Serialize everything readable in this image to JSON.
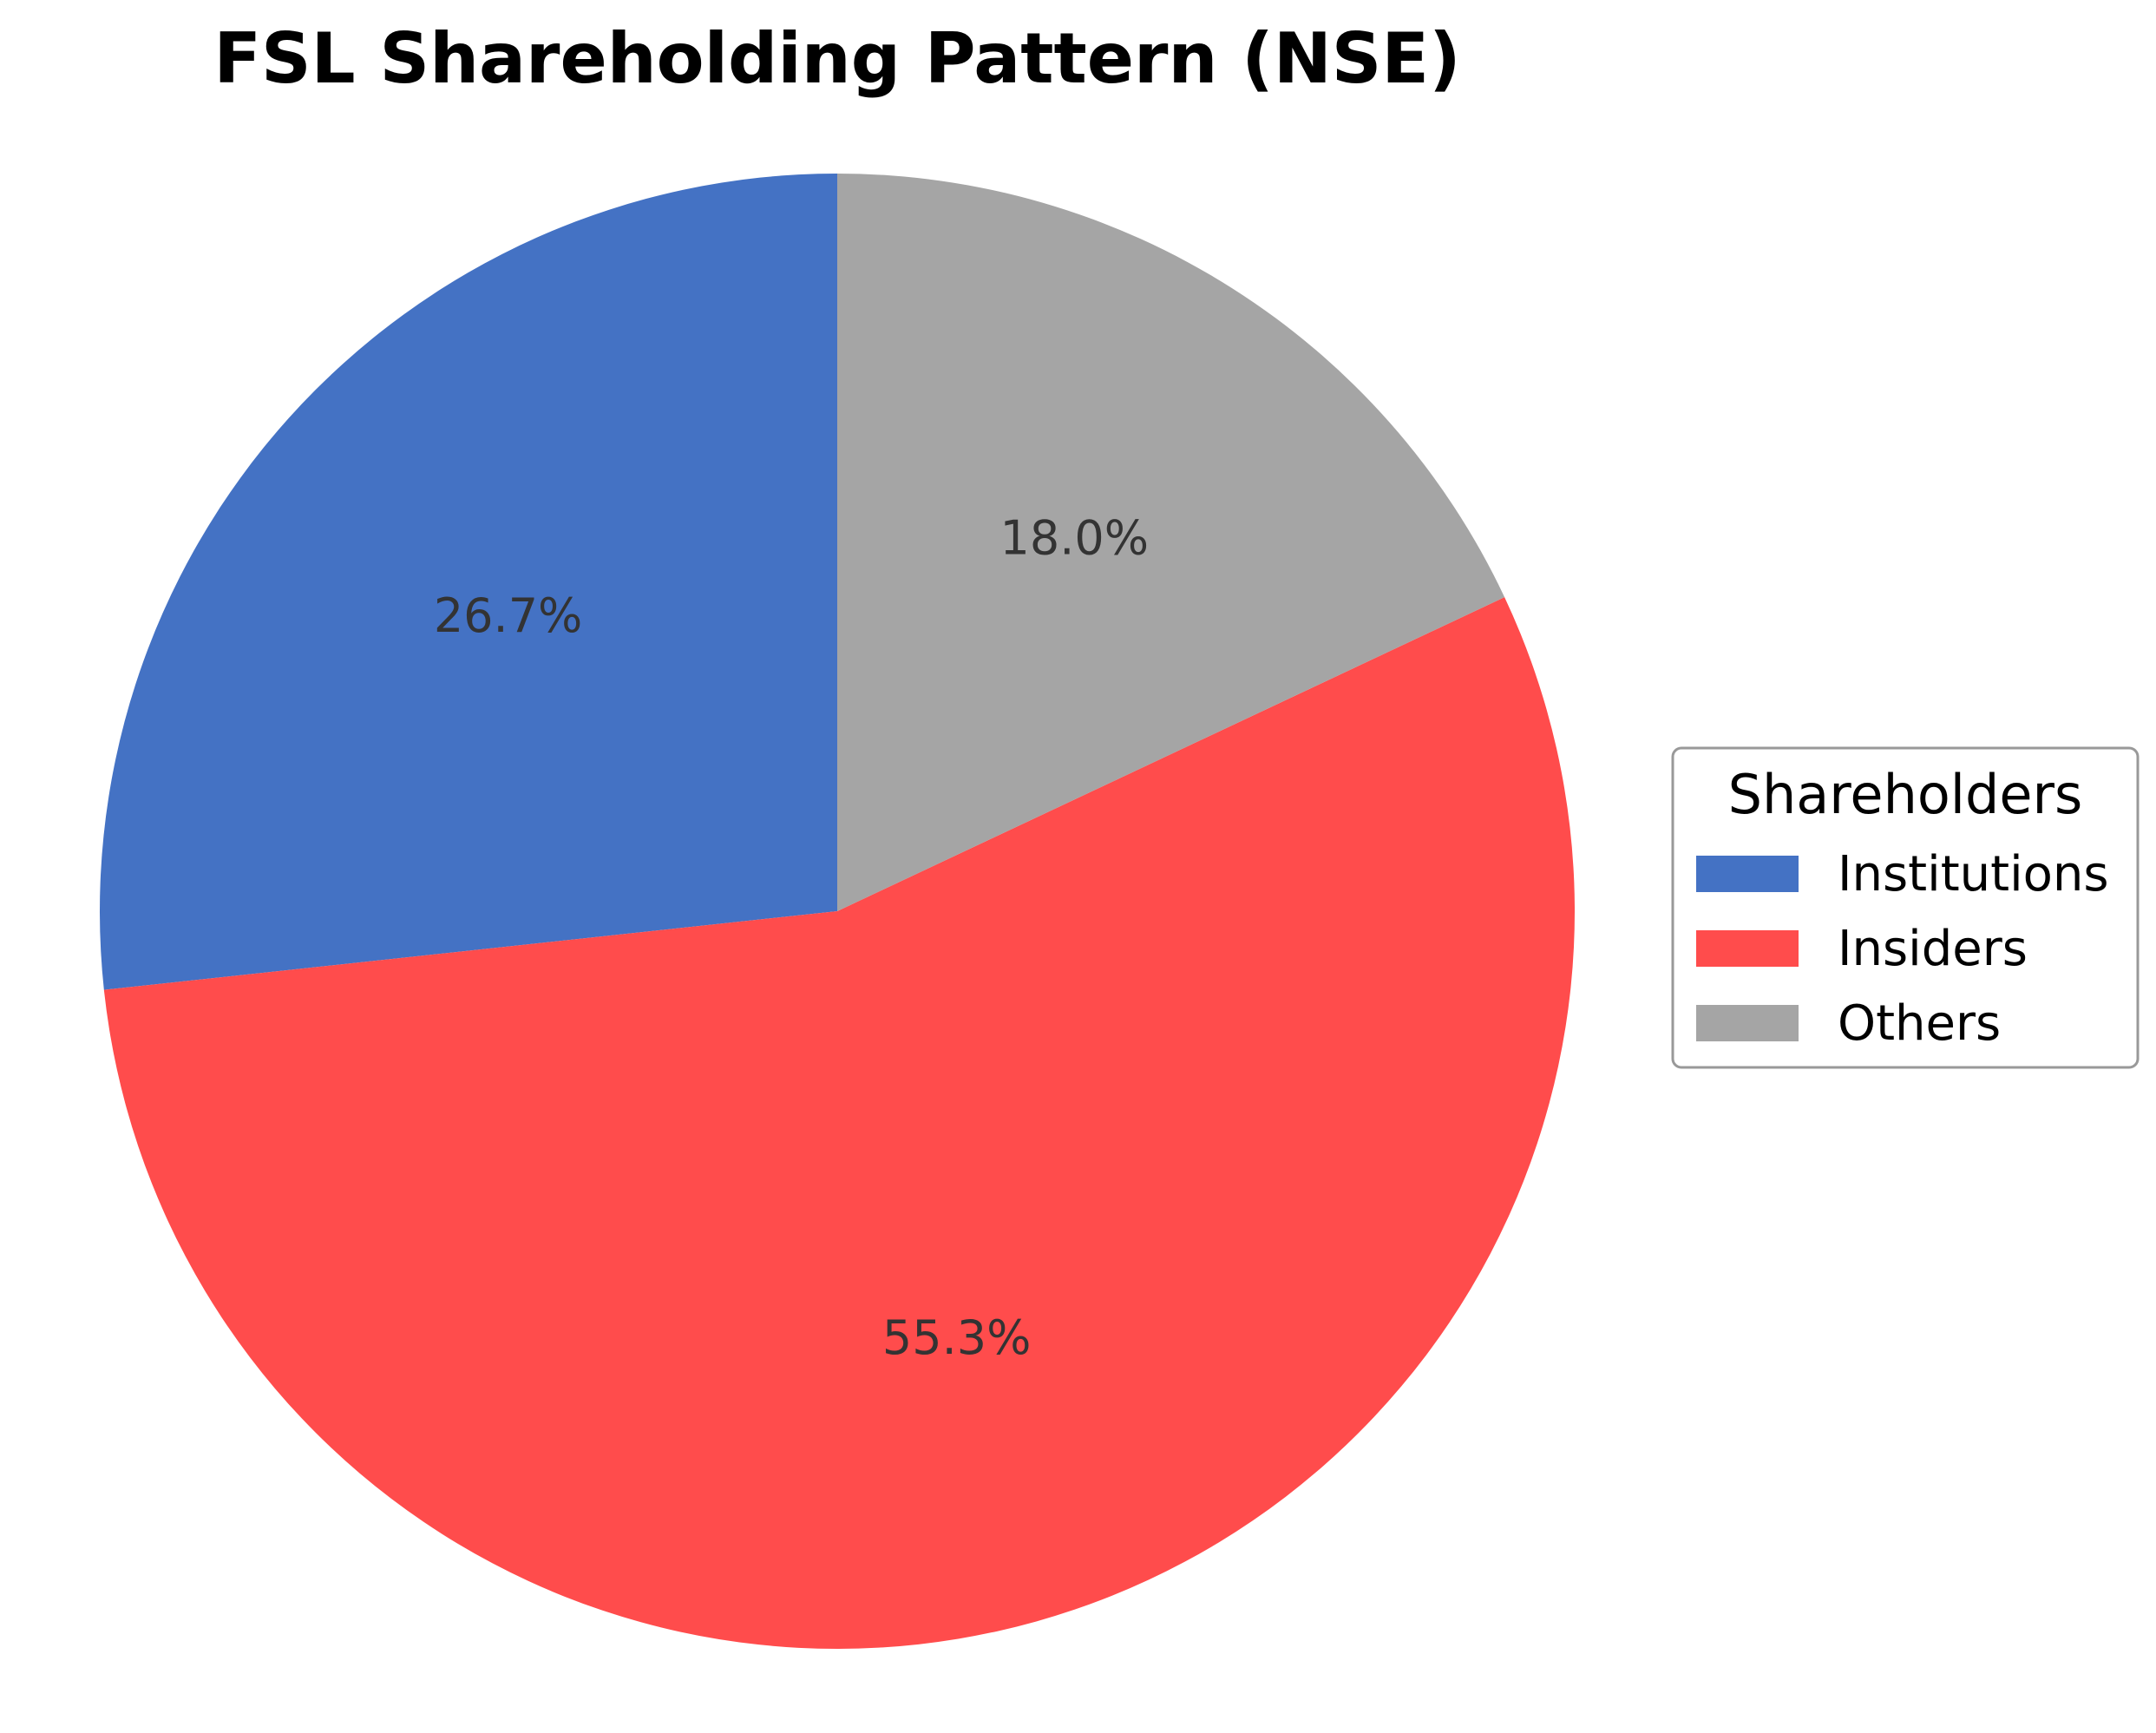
{
  "chart_data": {
    "type": "pie",
    "title": "FSL Shareholding Pattern (NSE)",
    "legend": {
      "title": "Shareholders",
      "placement": "right"
    },
    "slices": [
      {
        "label": "Institutions",
        "value": 26.7,
        "display": "26.7%",
        "color": "#4472C4"
      },
      {
        "label": "Insiders",
        "value": 55.3,
        "display": "55.3%",
        "color": "#FF4C4C"
      },
      {
        "label": "Others",
        "value": 18.0,
        "display": "18.0%",
        "color": "#A5A5A5"
      }
    ],
    "start_angle": "top",
    "direction": "counterclockwise"
  }
}
